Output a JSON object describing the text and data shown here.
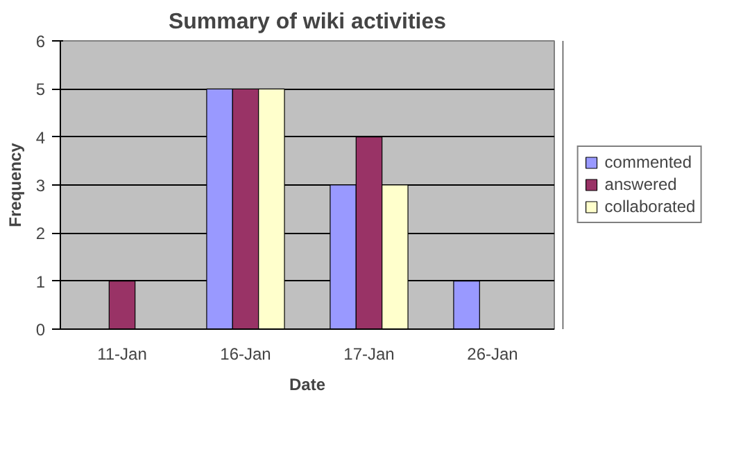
{
  "chart_data": {
    "type": "bar",
    "title": "Summary of wiki activities",
    "xlabel": "Date",
    "ylabel": "Frequency",
    "categories": [
      "11-Jan",
      "16-Jan",
      "17-Jan",
      "26-Jan"
    ],
    "series": [
      {
        "name": "commented",
        "color": "#9999ff",
        "values": [
          0,
          5,
          3,
          1
        ]
      },
      {
        "name": "answered",
        "color": "#993366",
        "values": [
          1,
          5,
          4,
          0
        ]
      },
      {
        "name": "collaborated",
        "color": "#ffffcc",
        "values": [
          0,
          5,
          3,
          0
        ]
      }
    ],
    "ylim": [
      0,
      6
    ],
    "yticks": [
      0,
      1,
      2,
      3,
      4,
      5,
      6
    ],
    "grid": "y",
    "legend": "right"
  }
}
